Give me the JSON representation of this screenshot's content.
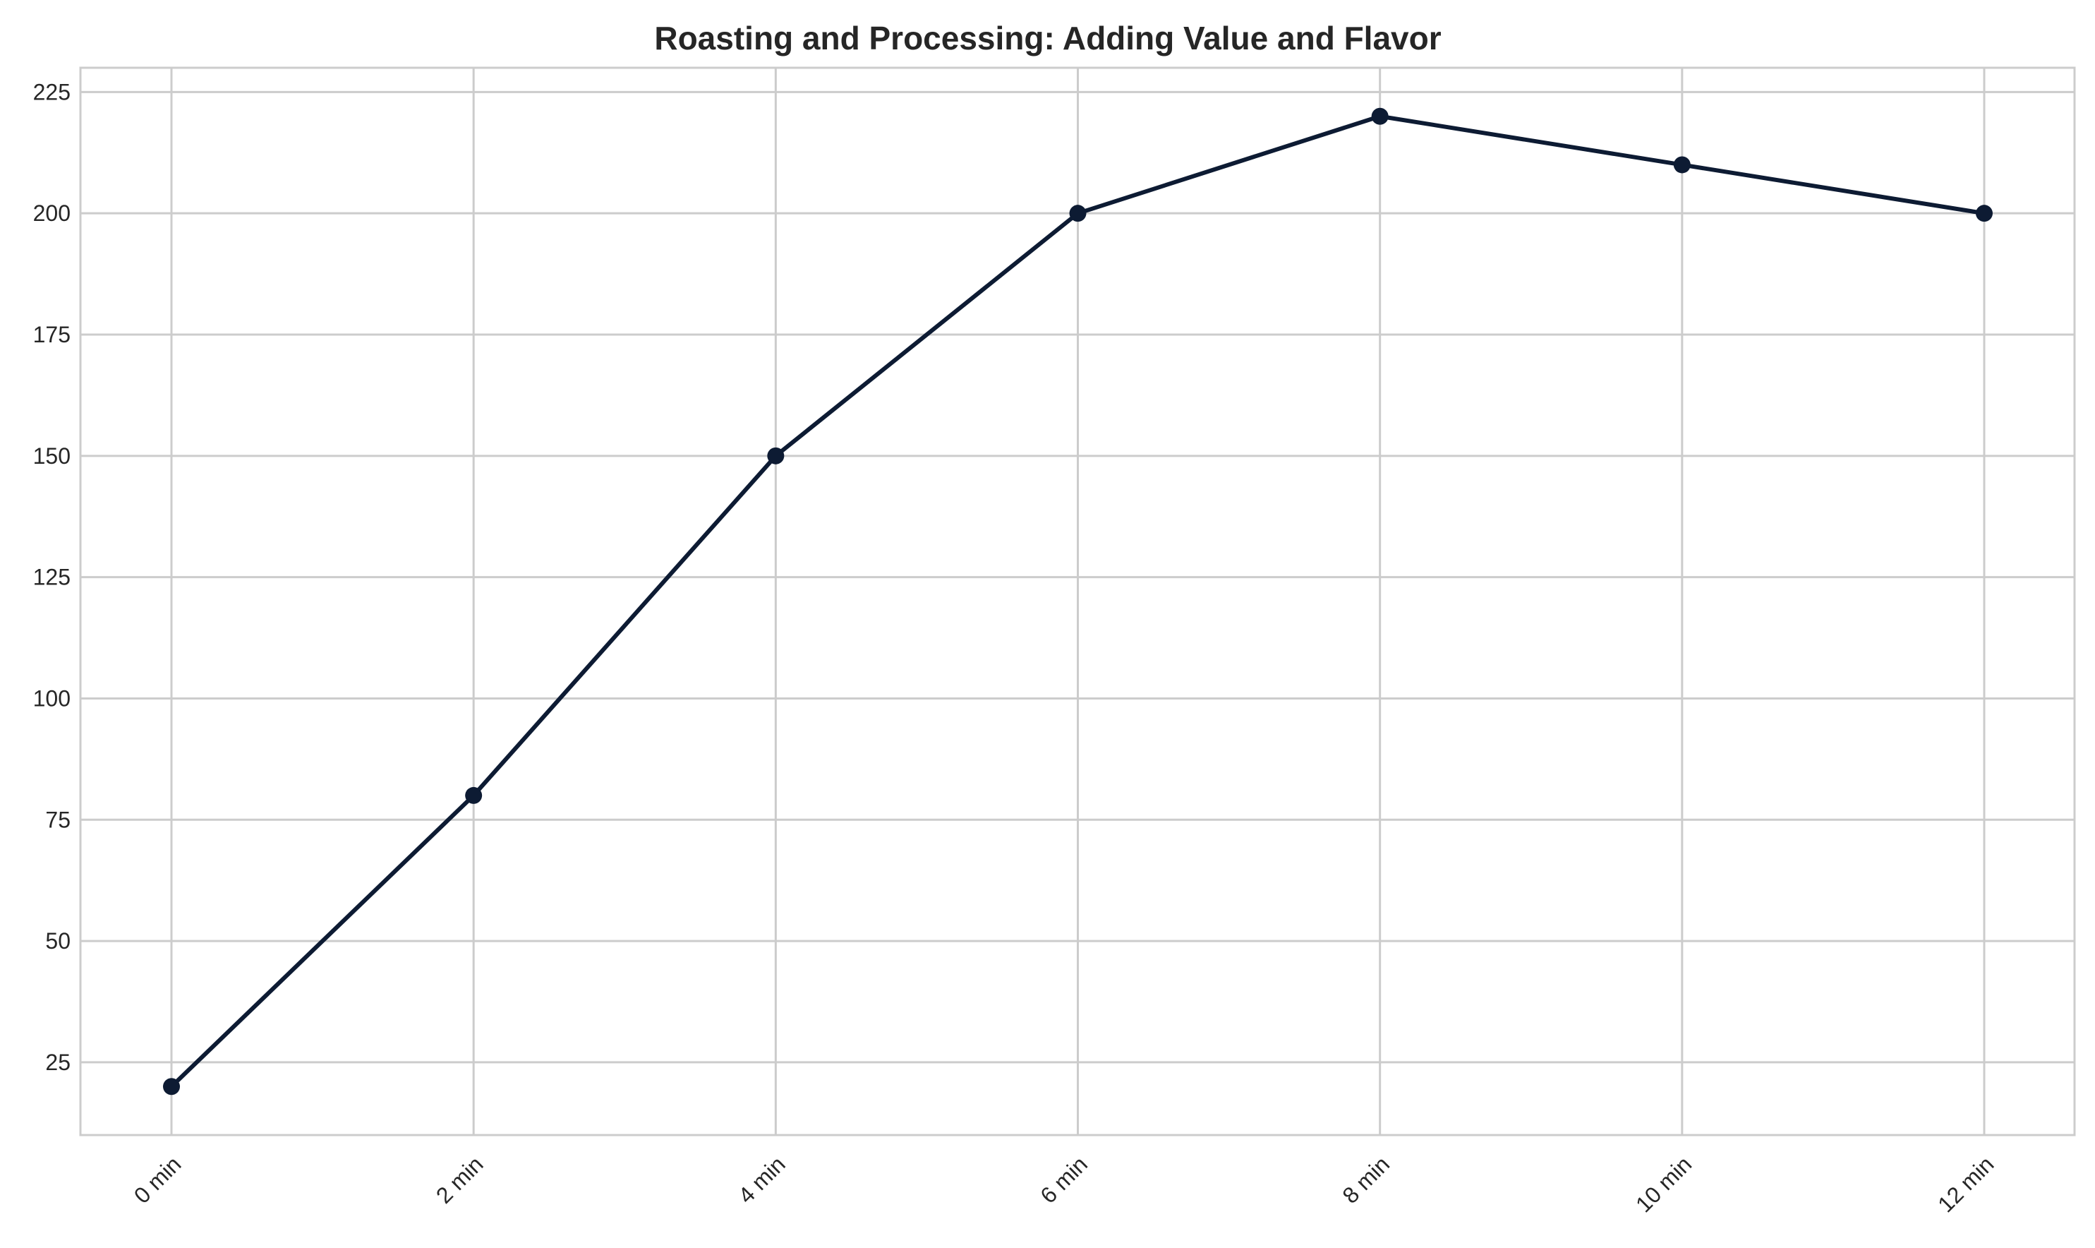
{
  "chart_data": {
    "type": "line",
    "title": "Roasting and Processing: Adding Value and Flavor",
    "xlabel": "",
    "ylabel": "",
    "categories": [
      "0 min",
      "2 min",
      "4 min",
      "6 min",
      "8 min",
      "10 min",
      "12 min"
    ],
    "series": [
      {
        "values": [
          20,
          80,
          150,
          200,
          220,
          210,
          200
        ]
      }
    ],
    "y_ticks": [
      25,
      50,
      75,
      100,
      125,
      150,
      175,
      200,
      225
    ],
    "ylim": [
      10,
      230
    ],
    "grid": true,
    "legend": "none",
    "line_color": "#0d1b33",
    "marker": "circle"
  }
}
